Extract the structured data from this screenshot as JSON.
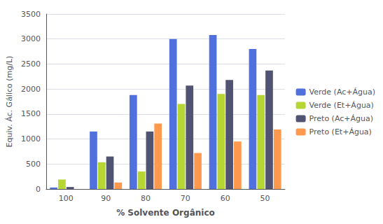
{
  "chart_data": {
    "type": "bar",
    "xlabel": "% Solvente Orgânico",
    "ylabel": "Equiv. Ác. Gálico (mg/L)",
    "categories": [
      "100",
      "90",
      "80",
      "70",
      "60",
      "50"
    ],
    "series": [
      {
        "name": "Verde (Ac+Água)",
        "values": [
          30,
          1150,
          1880,
          3000,
          3080,
          2800
        ]
      },
      {
        "name": "Verde (Et+Água)",
        "values": [
          190,
          535,
          350,
          1700,
          1900,
          1880
        ]
      },
      {
        "name": "Preto (Ac+Água)",
        "values": [
          40,
          650,
          1150,
          2070,
          2180,
          2370
        ]
      },
      {
        "name": "Preto (Et+Água)",
        "values": [
          0,
          130,
          1310,
          720,
          950,
          1190
        ]
      }
    ],
    "ylim": [
      0,
      3500
    ],
    "yticks": [
      0,
      500,
      1000,
      1500,
      2000,
      2500,
      3000,
      3500
    ],
    "grid": true,
    "legend": "right"
  }
}
